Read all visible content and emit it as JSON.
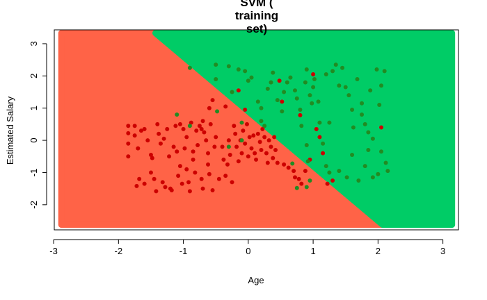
{
  "chart_data": {
    "type": "scatter",
    "title_lines": [
      "SVM (",
      "training",
      "set)"
    ],
    "xlabel": "Age",
    "ylabel": "Estimated Salary",
    "x_ticks": [
      "-3",
      "-2",
      "-1",
      "0",
      "1",
      "2",
      "3"
    ],
    "y_ticks": [
      "-2",
      "-1",
      "0",
      "1",
      "2",
      "3"
    ],
    "xlim": [
      -2.99,
      3.24
    ],
    "ylim": [
      -2.78,
      3.43
    ],
    "grid": false,
    "legend": "none",
    "region_bounds": {
      "x": [
        -2.88,
        3.14
      ],
      "y": [
        -2.62,
        3.33
      ]
    },
    "decision_boundary": [
      [
        -1.43,
        3.33
      ],
      [
        2.07,
        -2.62
      ]
    ],
    "region_colors": {
      "class_0": "#ff6347",
      "class_1": "#00cc66"
    },
    "point_colors": {
      "class_0": "#cc0000",
      "class_1": "#228b22"
    },
    "points": {
      "class_0": [
        [
          -1.85,
          0.45
        ],
        [
          -1.85,
          0.22
        ],
        [
          -1.85,
          -0.1
        ],
        [
          -1.85,
          -0.5
        ],
        [
          -1.75,
          0.45
        ],
        [
          -1.75,
          0.15
        ],
        [
          -1.7,
          -0.25
        ],
        [
          -1.68,
          -1.2
        ],
        [
          -1.72,
          -1.42
        ],
        [
          -1.6,
          -1.35
        ],
        [
          -1.6,
          0.35
        ],
        [
          -1.55,
          0.0
        ],
        [
          -1.5,
          -0.45
        ],
        [
          -1.5,
          -1.0
        ],
        [
          -1.45,
          -1.2
        ],
        [
          -1.42,
          -1.58
        ],
        [
          -1.4,
          0.5
        ],
        [
          -1.38,
          0.2
        ],
        [
          -1.35,
          -0.1
        ],
        [
          -1.32,
          -1.3
        ],
        [
          -1.28,
          -1.45
        ],
        [
          -1.25,
          0.35
        ],
        [
          -1.22,
          -0.5
        ],
        [
          -1.2,
          -1.5
        ],
        [
          -1.15,
          -0.2
        ],
        [
          -1.12,
          0.45
        ],
        [
          -1.08,
          -1.1
        ],
        [
          -1.05,
          -0.8
        ],
        [
          -1.02,
          -1.35
        ],
        [
          -1.0,
          0.35
        ],
        [
          -0.98,
          -0.25
        ],
        [
          -0.95,
          0.1
        ],
        [
          -0.92,
          -1.3
        ],
        [
          -0.9,
          -1.58
        ],
        [
          -0.88,
          0.55
        ],
        [
          -0.85,
          -0.6
        ],
        [
          -0.82,
          -1.0
        ],
        [
          -0.8,
          0.3
        ],
        [
          -0.78,
          -0.15
        ],
        [
          -0.75,
          0.45
        ],
        [
          -0.72,
          -1.2
        ],
        [
          -0.7,
          -1.5
        ],
        [
          -0.68,
          0.25
        ],
        [
          -0.65,
          0.0
        ],
        [
          -0.62,
          -0.4
        ],
        [
          -0.6,
          -1.05
        ],
        [
          -0.58,
          0.5
        ],
        [
          -0.55,
          -1.55
        ],
        [
          -0.52,
          -0.2
        ],
        [
          -0.5,
          0.1
        ],
        [
          -1.65,
          0.3
        ],
        [
          -1.48,
          -0.55
        ],
        [
          -1.3,
          0.05
        ],
        [
          -1.18,
          -1.55
        ],
        [
          -1.1,
          -0.35
        ],
        [
          -0.95,
          -0.9
        ],
        [
          -0.72,
          0.35
        ],
        [
          -0.62,
          -0.75
        ],
        [
          -0.4,
          -0.2
        ],
        [
          -0.38,
          -0.6
        ],
        [
          -0.35,
          -1.1
        ],
        [
          -0.32,
          -0.75
        ],
        [
          -0.3,
          0.0
        ],
        [
          -0.28,
          -0.45
        ],
        [
          -0.25,
          -1.3
        ],
        [
          -0.22,
          0.45
        ],
        [
          -0.2,
          0.2
        ],
        [
          -0.18,
          -0.2
        ],
        [
          -0.15,
          -0.65
        ],
        [
          -0.12,
          0.0
        ],
        [
          -0.1,
          -0.4
        ],
        [
          -0.08,
          0.3
        ],
        [
          -0.05,
          -0.1
        ],
        [
          -0.02,
          0.5
        ],
        [
          0.0,
          -0.5
        ],
        [
          0.02,
          0.1
        ],
        [
          0.05,
          -0.25
        ],
        [
          0.08,
          0.15
        ],
        [
          0.1,
          -0.4
        ],
        [
          0.12,
          -0.6
        ],
        [
          0.15,
          0.2
        ],
        [
          0.18,
          -0.05
        ],
        [
          0.2,
          -0.3
        ],
        [
          0.22,
          0.35
        ],
        [
          0.25,
          0.1
        ],
        [
          0.28,
          -0.4
        ],
        [
          0.3,
          -0.7
        ],
        [
          0.32,
          0.0
        ],
        [
          0.35,
          -0.2
        ],
        [
          0.38,
          -0.55
        ],
        [
          0.4,
          0.1
        ],
        [
          0.42,
          -0.3
        ],
        [
          0.45,
          -0.7
        ],
        [
          0.48,
          1.85
        ],
        [
          -0.6,
          1.0
        ],
        [
          -0.7,
          0.6
        ],
        [
          -0.55,
          1.25
        ],
        [
          -0.35,
          1.05
        ],
        [
          -0.15,
          1.55
        ],
        [
          -0.05,
          0.95
        ],
        [
          0.62,
          -0.85
        ],
        [
          0.7,
          -0.95
        ],
        [
          0.72,
          -1.15
        ],
        [
          0.78,
          -1.2
        ],
        [
          0.8,
          0.78
        ],
        [
          0.82,
          -1.35
        ],
        [
          0.88,
          -0.95
        ],
        [
          0.95,
          -0.6
        ],
        [
          1.05,
          0.35
        ],
        [
          1.1,
          0.1
        ],
        [
          1.15,
          -0.4
        ],
        [
          1.0,
          2.05
        ],
        [
          1.3,
          -1.25
        ],
        [
          1.22,
          -1.35
        ],
        [
          2.05,
          0.4
        ],
        [
          0.55,
          -0.75
        ],
        [
          0.52,
          1.2
        ],
        [
          -1.05,
          0.5
        ],
        [
          -0.85,
          -0.35
        ],
        [
          -0.45,
          -1.2
        ]
      ],
      "class_1": [
        [
          -0.9,
          2.25
        ],
        [
          -0.9,
          0.45
        ],
        [
          -0.5,
          2.35
        ],
        [
          -0.5,
          1.9
        ],
        [
          -0.48,
          0.9
        ],
        [
          -0.3,
          2.3
        ],
        [
          -0.25,
          1.5
        ],
        [
          -0.15,
          2.2
        ],
        [
          -0.05,
          2.15
        ],
        [
          0.0,
          1.85
        ],
        [
          -0.1,
          0.0
        ],
        [
          0.15,
          1.2
        ],
        [
          0.2,
          1.0
        ],
        [
          0.25,
          0.45
        ],
        [
          0.3,
          1.6
        ],
        [
          0.35,
          1.8
        ],
        [
          0.38,
          2.1
        ],
        [
          0.45,
          1.25
        ],
        [
          0.52,
          0.9
        ],
        [
          0.55,
          1.5
        ],
        [
          0.6,
          1.8
        ],
        [
          0.65,
          1.95
        ],
        [
          0.72,
          1.55
        ],
        [
          0.75,
          1.3
        ],
        [
          0.8,
          0.95
        ],
        [
          0.82,
          0.45
        ],
        [
          0.88,
          1.8
        ],
        [
          0.9,
          2.2
        ],
        [
          0.95,
          1.4
        ],
        [
          1.0,
          1.65
        ],
        [
          1.02,
          1.9
        ],
        [
          1.08,
          1.2
        ],
        [
          1.1,
          0.55
        ],
        [
          1.15,
          -0.1
        ],
        [
          1.2,
          2.05
        ],
        [
          1.25,
          0.55
        ],
        [
          1.3,
          2.15
        ],
        [
          1.35,
          2.35
        ],
        [
          1.45,
          2.25
        ],
        [
          1.5,
          1.65
        ],
        [
          1.55,
          1.4
        ],
        [
          1.6,
          0.95
        ],
        [
          1.62,
          0.4
        ],
        [
          1.68,
          1.9
        ],
        [
          1.75,
          1.15
        ],
        [
          1.8,
          0.5
        ],
        [
          1.85,
          0.25
        ],
        [
          1.88,
          1.55
        ],
        [
          1.92,
          0.05
        ],
        [
          1.98,
          2.2
        ],
        [
          2.02,
          1.1
        ],
        [
          2.05,
          -0.35
        ],
        [
          2.1,
          2.15
        ],
        [
          2.12,
          -0.7
        ],
        [
          2.15,
          -0.95
        ],
        [
          1.4,
          -0.95
        ],
        [
          1.52,
          -1.15
        ],
        [
          1.7,
          -1.25
        ],
        [
          1.8,
          -0.8
        ],
        [
          2.0,
          -1.05
        ],
        [
          1.6,
          -0.45
        ],
        [
          1.85,
          -0.3
        ],
        [
          0.9,
          -0.15
        ],
        [
          0.95,
          -1.25
        ],
        [
          0.92,
          -0.65
        ],
        [
          0.68,
          -0.72
        ],
        [
          0.75,
          -1.48
        ],
        [
          0.9,
          -1.45
        ],
        [
          1.2,
          -0.8
        ],
        [
          1.25,
          -1.0
        ],
        [
          -0.3,
          -0.2
        ],
        [
          -1.1,
          0.8
        ],
        [
          -0.1,
          0.55
        ],
        [
          0.05,
          1.95
        ],
        [
          0.2,
          0.6
        ],
        [
          1.4,
          1.7
        ],
        [
          1.75,
          0.8
        ],
        [
          1.92,
          -1.15
        ],
        [
          2.05,
          1.7
        ],
        [
          0.98,
          1.15
        ]
      ]
    }
  }
}
